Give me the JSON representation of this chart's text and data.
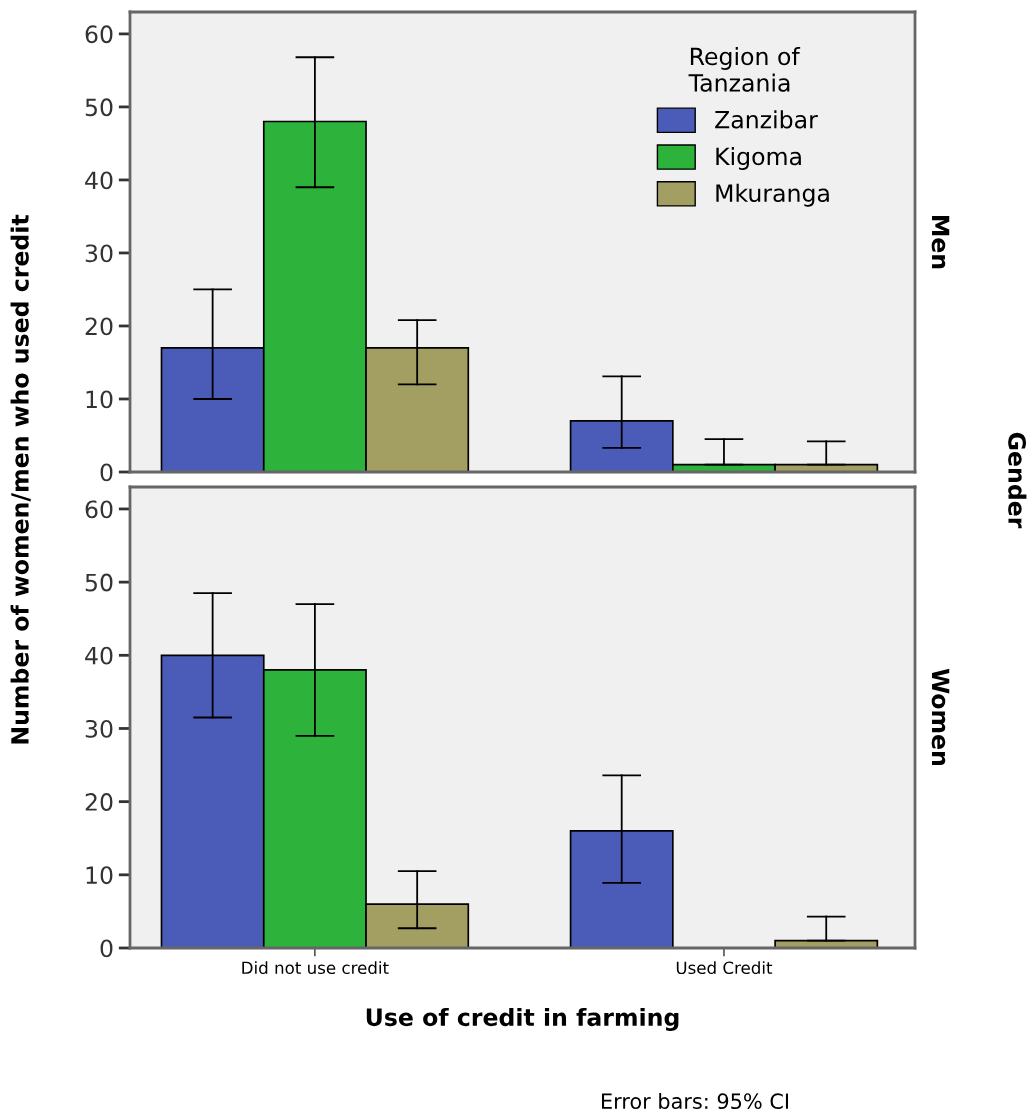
{
  "chart_data": [
    {
      "type": "bar",
      "categories": [
        null,
        null
      ],
      "ylabel": "Number of women/men who used credit",
      "y2label": "Men",
      "legend_title": "Region of\nTanzania",
      "legend": "top right",
      "tick_labels": "y",
      "ylim": [
        0,
        63
      ],
      "yticks": [
        0,
        10,
        20,
        30,
        40,
        50,
        60
      ],
      "grid": false,
      "annotations": [
        "Gender"
      ],
      "series": [
        {
          "name": "Zanzibar",
          "color": "#4a5cb8",
          "values": [
            17,
            7
          ],
          "errors": [
            [
              10,
              25
            ],
            [
              3.3,
              13.1
            ]
          ]
        },
        {
          "name": "Kigoma",
          "color": "#2db33b",
          "values": [
            48,
            1
          ],
          "errors": [
            [
              39,
              56.8
            ],
            [
              1,
              4.5
            ]
          ]
        },
        {
          "name": "Mkuranga",
          "color": "#a39f62",
          "values": [
            17,
            1
          ],
          "errors": [
            [
              12,
              20.8
            ],
            [
              1,
              4.2
            ]
          ]
        }
      ]
    },
    {
      "type": "bar",
      "categories": [
        "Did not use credit",
        "Used Credit"
      ],
      "xlabel": "Use of credit in farming",
      "y2label": "Women",
      "ylim": [
        0,
        63
      ],
      "yticks": [
        0,
        10,
        20,
        30,
        40,
        50,
        60
      ],
      "grid": false,
      "annotations": [
        "Error bars: 95% CI"
      ],
      "series": [
        {
          "color": "#4a5cb8",
          "values": [
            40,
            16
          ],
          "errors": [
            [
              31.5,
              48.5
            ],
            [
              8.9,
              23.6
            ]
          ]
        },
        {
          "color": "#2db33b",
          "values": [
            38,
            0
          ],
          "errors": [
            [
              29,
              47
            ],
            null
          ]
        },
        {
          "color": "#a39f62",
          "values": [
            6,
            1
          ],
          "errors": [
            [
              2.7,
              10.5
            ],
            [
              1,
              4.3
            ]
          ]
        }
      ]
    }
  ]
}
